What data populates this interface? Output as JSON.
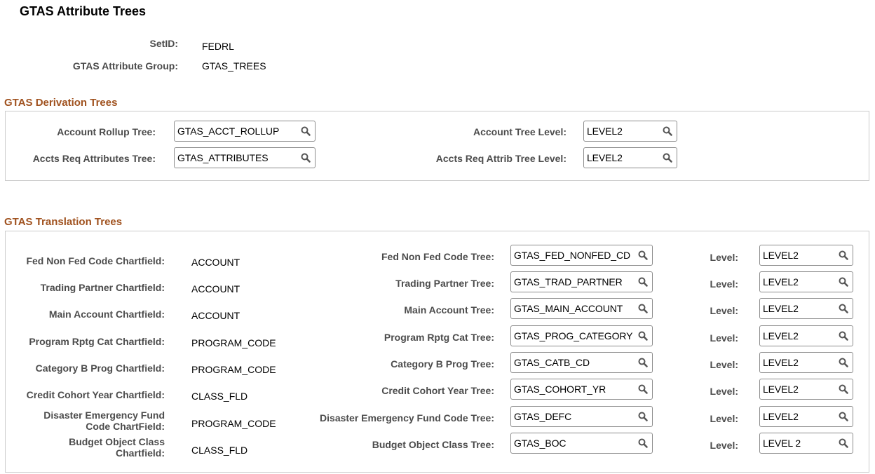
{
  "page_title": "GTAS Attribute Trees",
  "header": {
    "setid_label": "SetID:",
    "setid_value": "FEDRL",
    "group_label": "GTAS Attribute Group:",
    "group_value": "GTAS_TREES"
  },
  "derivation": {
    "title": "GTAS Derivation Trees",
    "rows": [
      {
        "tree_label": "Account Rollup Tree:",
        "tree_value": "GTAS_ACCT_ROLLUP",
        "level_label": "Account Tree Level:",
        "level_value": "LEVEL2"
      },
      {
        "tree_label": "Accts Req Attributes Tree:",
        "tree_value": "GTAS_ATTRIBUTES",
        "level_label": "Accts Req Attrib Tree Level:",
        "level_value": "LEVEL2"
      }
    ]
  },
  "translation": {
    "title": "GTAS Translation Trees",
    "rows": [
      {
        "cf_label": "Fed Non Fed Code Chartfield:",
        "cf_value": "ACCOUNT",
        "tree_label": "Fed Non Fed Code Tree:",
        "tree_value": "GTAS_FED_NONFED_CD",
        "level_label": "Level:",
        "level_value": "LEVEL2"
      },
      {
        "cf_label": "Trading Partner Chartfield:",
        "cf_value": "ACCOUNT",
        "tree_label": "Trading Partner Tree:",
        "tree_value": "GTAS_TRAD_PARTNER",
        "level_label": "Level:",
        "level_value": "LEVEL2"
      },
      {
        "cf_label": "Main Account Chartfield:",
        "cf_value": "ACCOUNT",
        "tree_label": "Main Account Tree:",
        "tree_value": "GTAS_MAIN_ACCOUNT",
        "level_label": "Level:",
        "level_value": "LEVEL2"
      },
      {
        "cf_label": "Program Rptg Cat Chartfield:",
        "cf_value": "PROGRAM_CODE",
        "tree_label": "Program Rptg Cat Tree:",
        "tree_value": "GTAS_PROG_CATEGORY",
        "level_label": "Level:",
        "level_value": "LEVEL2"
      },
      {
        "cf_label": "Category B Prog Chartfield:",
        "cf_value": "PROGRAM_CODE",
        "tree_label": "Category B Prog Tree:",
        "tree_value": "GTAS_CATB_CD",
        "level_label": "Level:",
        "level_value": "LEVEL2"
      },
      {
        "cf_label": "Credit Cohort Year Chartfield:",
        "cf_value": "CLASS_FLD",
        "tree_label": "Credit Cohort Year Tree:",
        "tree_value": "GTAS_COHORT_YR",
        "level_label": "Level:",
        "level_value": "LEVEL2"
      },
      {
        "cf_label": "Disaster Emergency Fund Code ChartField:",
        "cf_value": "PROGRAM_CODE",
        "tree_label": "Disaster Emergency Fund Code Tree:",
        "tree_value": "GTAS_DEFC",
        "level_label": "Level:",
        "level_value": "LEVEL2"
      },
      {
        "cf_label": "Budget Object Class Chartfield:",
        "cf_value": "CLASS_FLD",
        "tree_label": "Budget Object Class Tree:",
        "tree_value": "GTAS_BOC",
        "level_label": "Level:",
        "level_value": "LEVEL 2"
      }
    ]
  },
  "icons": {
    "lookup": "search-icon"
  }
}
